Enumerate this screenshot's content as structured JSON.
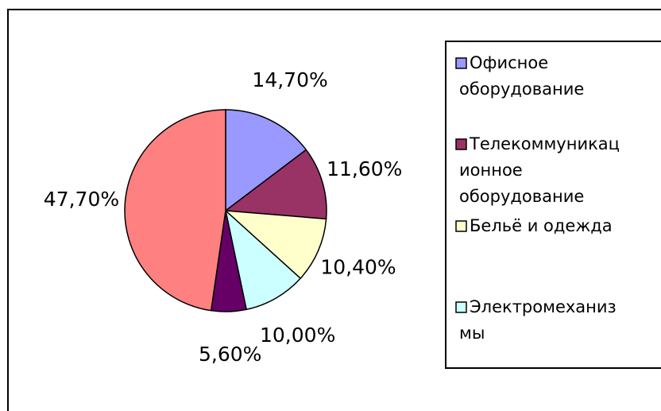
{
  "chart_data": {
    "type": "pie",
    "categories": [
      "Офисное оборудование",
      "Телекоммуникационное оборудование",
      "Бельё и одежда",
      "Электромеханизмы",
      null,
      null
    ],
    "values": [
      14.7,
      11.6,
      10.4,
      10.0,
      5.6,
      47.7
    ],
    "value_labels": [
      "14,70%",
      "11,60%",
      "10,40%",
      "10,00%",
      "5,60%",
      "47,70%"
    ],
    "colors": [
      "#9999ff",
      "#993366",
      "#ffffcc",
      "#ccffff",
      "#660066",
      "#ff8080"
    ],
    "legend": "right"
  }
}
